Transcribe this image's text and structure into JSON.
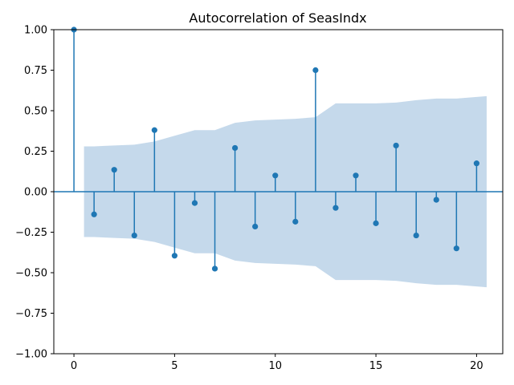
{
  "chart_data": {
    "type": "stem",
    "title": "Autocorrelation of SeasIndx",
    "xlabel": "",
    "ylabel": "",
    "xlim": [
      -1,
      21.3
    ],
    "ylim": [
      -1.0,
      1.0
    ],
    "xticks": [
      0,
      5,
      10,
      15,
      20
    ],
    "yticks": [
      -1.0,
      -0.75,
      -0.5,
      -0.25,
      0.0,
      0.25,
      0.5,
      0.75,
      1.0
    ],
    "xtick_labels": [
      "0",
      "5",
      "10",
      "15",
      "20"
    ],
    "ytick_labels": [
      "−1.00",
      "−0.75",
      "−0.50",
      "−0.25",
      "0.00",
      "0.25",
      "0.50",
      "0.75",
      "1.00"
    ],
    "grid": false,
    "lags": [
      0,
      1,
      2,
      3,
      4,
      5,
      6,
      7,
      8,
      9,
      10,
      11,
      12,
      13,
      14,
      15,
      16,
      17,
      18,
      19,
      20
    ],
    "acf": [
      1.0,
      -0.14,
      0.135,
      -0.27,
      0.38,
      -0.395,
      -0.07,
      -0.475,
      0.27,
      -0.215,
      0.1,
      -0.185,
      0.75,
      -0.1,
      0.1,
      -0.195,
      0.285,
      -0.27,
      -0.05,
      -0.35,
      0.175
    ],
    "confidence_band": {
      "x": [
        0.5,
        1,
        2,
        3,
        4,
        5,
        6,
        7,
        8,
        9,
        10,
        11,
        12,
        13,
        14,
        15,
        16,
        17,
        18,
        19,
        20,
        20.5
      ],
      "upper": [
        0.28,
        0.28,
        0.285,
        0.29,
        0.31,
        0.345,
        0.38,
        0.38,
        0.425,
        0.44,
        0.445,
        0.45,
        0.46,
        0.545,
        0.545,
        0.545,
        0.55,
        0.565,
        0.575,
        0.575,
        0.585,
        0.59
      ]
    },
    "colors": {
      "stem": "#1f77b4",
      "band": "#c5d9eb"
    }
  }
}
